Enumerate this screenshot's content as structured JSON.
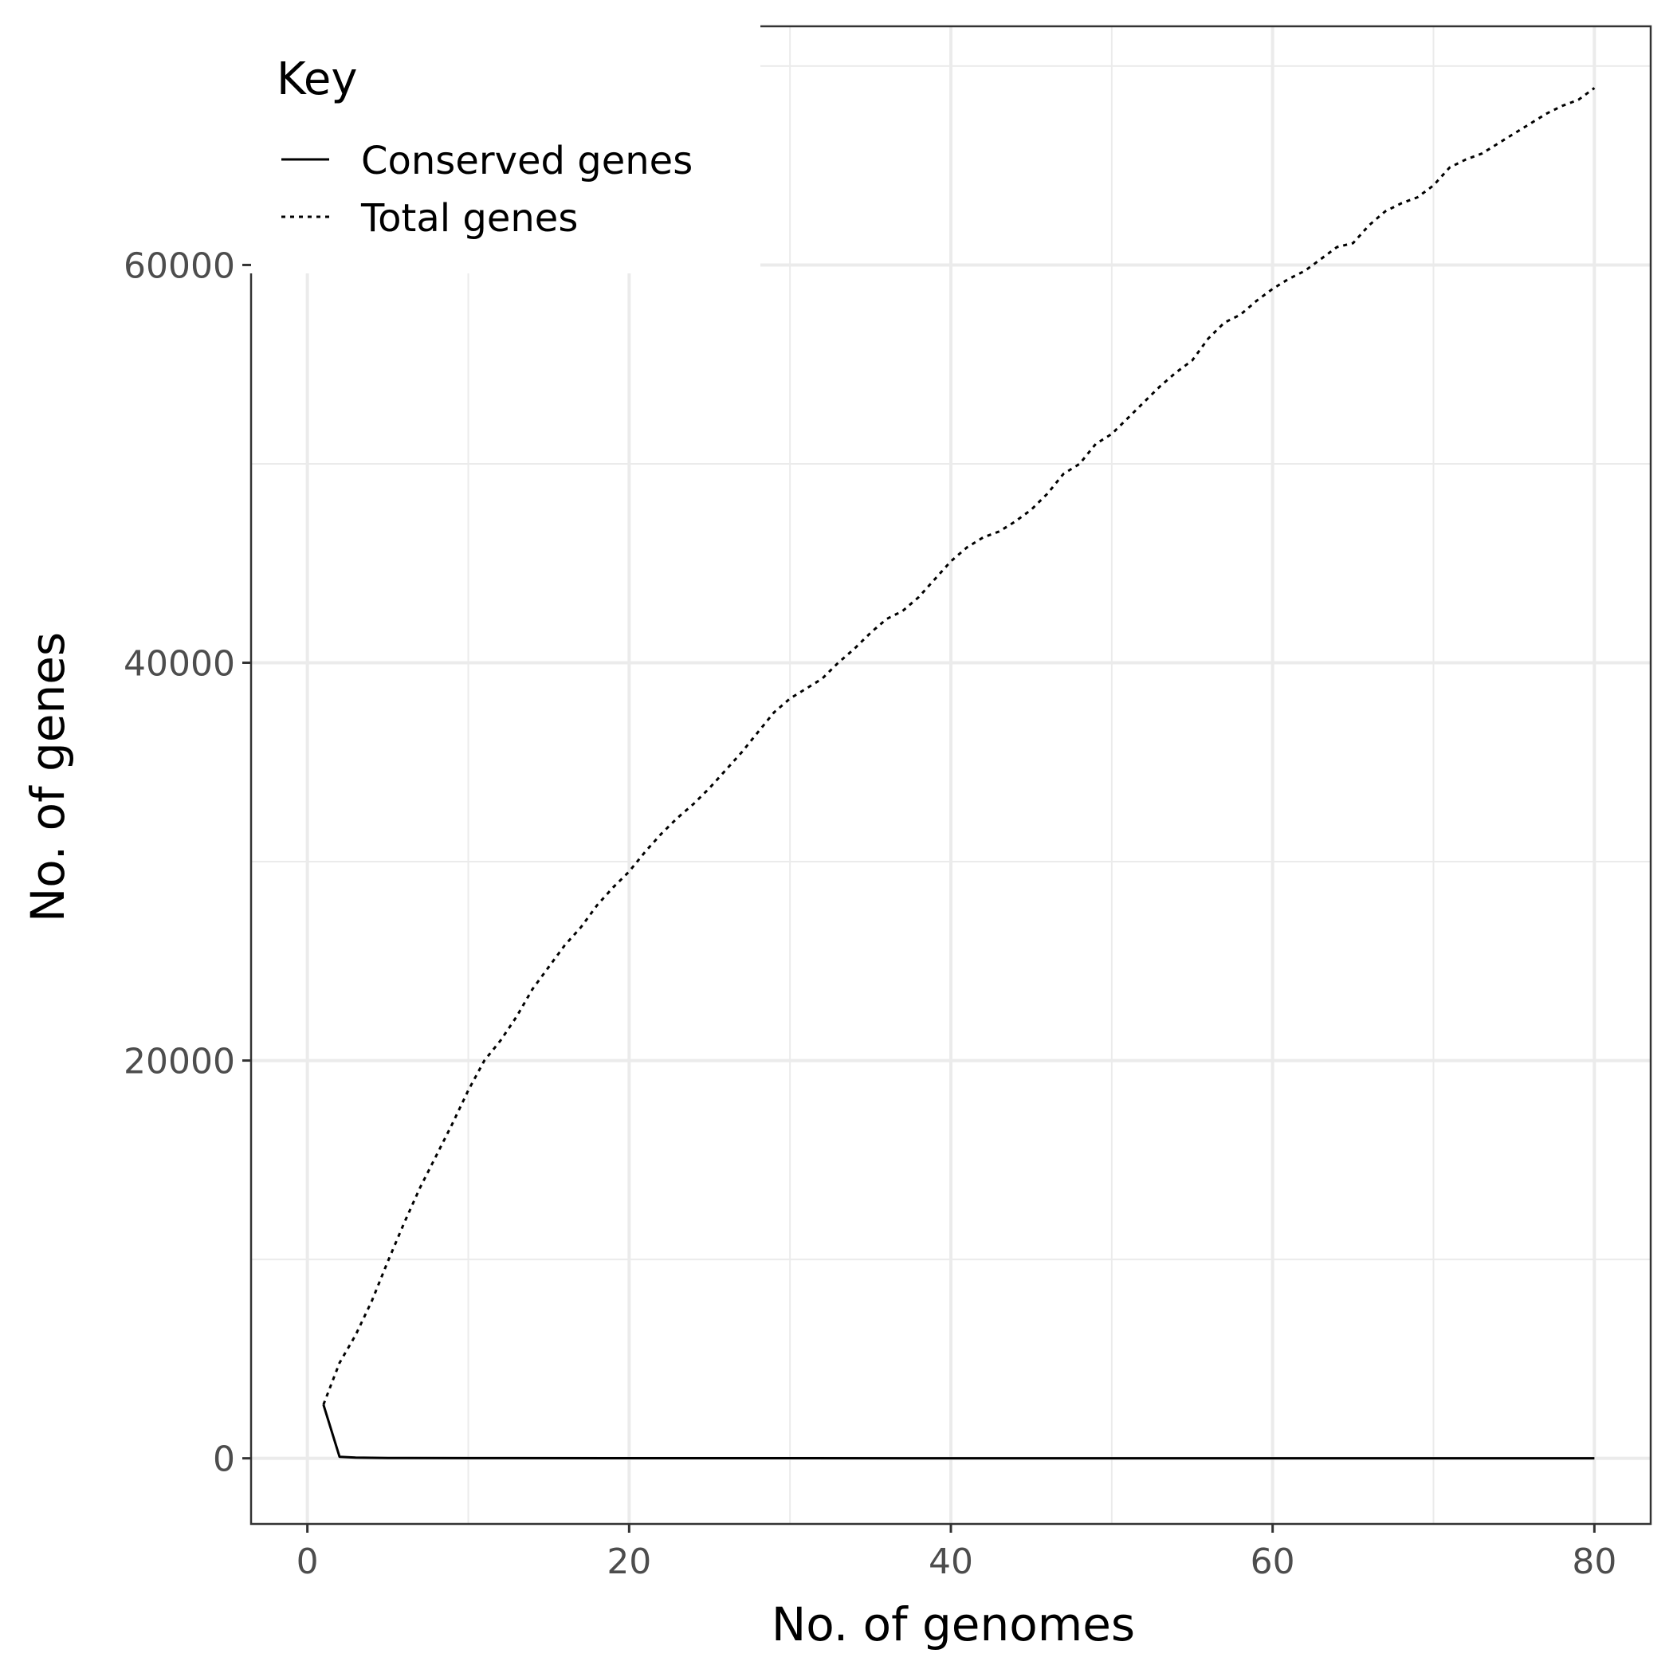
{
  "chart_data": {
    "type": "line",
    "xlabel": "No. of genomes",
    "ylabel": "No. of genes",
    "xlim": [
      -3.5,
      83.5
    ],
    "ylim": [
      -3300,
      72000
    ],
    "x_ticks": [
      0,
      20,
      40,
      60,
      80
    ],
    "x_tick_labels": [
      "0",
      "20",
      "40",
      "60",
      "80"
    ],
    "y_ticks": [
      0,
      20000,
      40000,
      60000
    ],
    "y_tick_labels": [
      "0",
      "20000",
      "40000",
      "60000"
    ],
    "grid": true,
    "legend": {
      "title": "Key",
      "position": "top-left inside",
      "entries": [
        "Conserved genes",
        "Total genes"
      ]
    },
    "series": [
      {
        "name": "Conserved genes",
        "linestyle": "solid",
        "color": "#000000",
        "points": [
          [
            1,
            2700
          ],
          [
            2,
            80
          ],
          [
            3,
            40
          ],
          [
            5,
            20
          ],
          [
            10,
            10
          ],
          [
            20,
            5
          ],
          [
            40,
            3
          ],
          [
            60,
            2
          ],
          [
            80,
            2
          ]
        ]
      },
      {
        "name": "Total genes",
        "linestyle": "dotted",
        "color": "#000000",
        "points": [
          [
            1,
            2700
          ],
          [
            2,
            4800
          ],
          [
            3,
            6200
          ],
          [
            4,
            7900
          ],
          [
            5,
            9900
          ],
          [
            6,
            11800
          ],
          [
            7,
            13600
          ],
          [
            8,
            15200
          ],
          [
            9,
            16800
          ],
          [
            10,
            18500
          ],
          [
            11,
            20000
          ],
          [
            12,
            21000
          ],
          [
            13,
            22200
          ],
          [
            14,
            23600
          ],
          [
            15,
            24700
          ],
          [
            16,
            25800
          ],
          [
            17,
            26700
          ],
          [
            18,
            27800
          ],
          [
            19,
            28700
          ],
          [
            20,
            29500
          ],
          [
            21,
            30500
          ],
          [
            22,
            31400
          ],
          [
            23,
            32200
          ],
          [
            24,
            32900
          ],
          [
            25,
            33700
          ],
          [
            26,
            34600
          ],
          [
            27,
            35500
          ],
          [
            28,
            36500
          ],
          [
            29,
            37500
          ],
          [
            30,
            38200
          ],
          [
            31,
            38700
          ],
          [
            32,
            39200
          ],
          [
            33,
            40000
          ],
          [
            34,
            40700
          ],
          [
            35,
            41500
          ],
          [
            36,
            42200
          ],
          [
            37,
            42600
          ],
          [
            38,
            43300
          ],
          [
            39,
            44200
          ],
          [
            40,
            45100
          ],
          [
            41,
            45800
          ],
          [
            42,
            46300
          ],
          [
            43,
            46600
          ],
          [
            44,
            47100
          ],
          [
            45,
            47700
          ],
          [
            46,
            48500
          ],
          [
            47,
            49500
          ],
          [
            48,
            50000
          ],
          [
            49,
            51000
          ],
          [
            50,
            51500
          ],
          [
            51,
            52300
          ],
          [
            52,
            53100
          ],
          [
            53,
            53900
          ],
          [
            54,
            54600
          ],
          [
            55,
            55200
          ],
          [
            56,
            56300
          ],
          [
            57,
            57100
          ],
          [
            58,
            57500
          ],
          [
            59,
            58200
          ],
          [
            60,
            58800
          ],
          [
            61,
            59300
          ],
          [
            62,
            59700
          ],
          [
            63,
            60300
          ],
          [
            64,
            60900
          ],
          [
            65,
            61100
          ],
          [
            66,
            62000
          ],
          [
            67,
            62700
          ],
          [
            68,
            63100
          ],
          [
            69,
            63400
          ],
          [
            70,
            64000
          ],
          [
            71,
            64900
          ],
          [
            72,
            65300
          ],
          [
            73,
            65600
          ],
          [
            74,
            66100
          ],
          [
            75,
            66600
          ],
          [
            76,
            67100
          ],
          [
            77,
            67600
          ],
          [
            78,
            68000
          ],
          [
            79,
            68300
          ],
          [
            80,
            68900
          ]
        ]
      }
    ]
  }
}
